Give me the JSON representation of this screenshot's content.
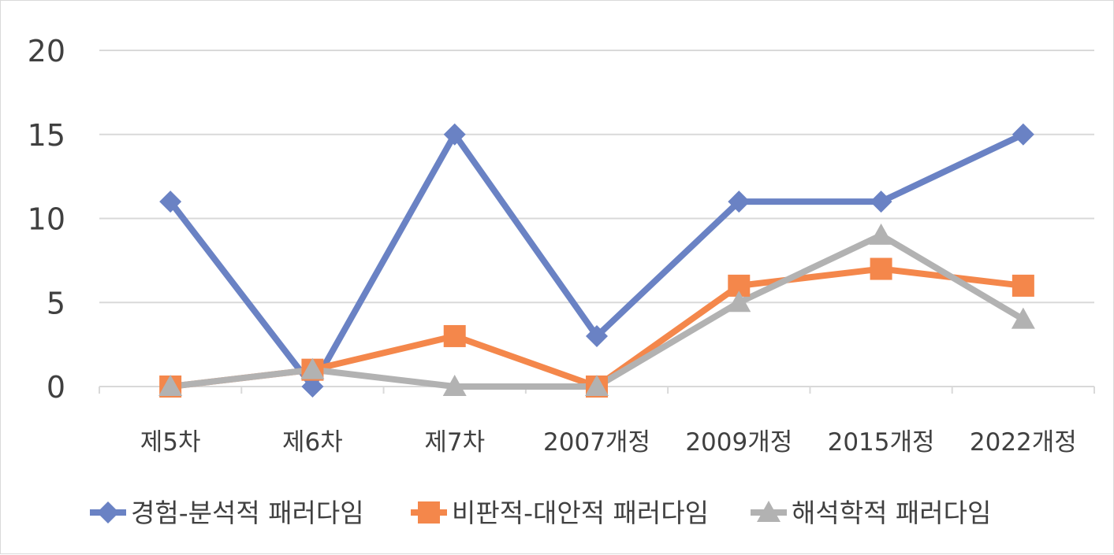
{
  "chart_data": {
    "type": "line",
    "title": "",
    "xlabel": "",
    "ylabel": "",
    "categories": [
      "제5차",
      "제6차",
      "제7차",
      "2007개정",
      "2009개정",
      "2015개정",
      "2022개정"
    ],
    "ylim": [
      0,
      20
    ],
    "yticks": [
      "0",
      "5",
      "10",
      "15",
      "20"
    ],
    "grid": true,
    "legend_position": "bottom",
    "series": [
      {
        "name": "경험-분석적 패러다임",
        "color": "#6a82c4",
        "marker": "diamond",
        "values": [
          11,
          0,
          15,
          3,
          11,
          11,
          15
        ]
      },
      {
        "name": "비판적-대안적 패러다임",
        "color": "#f4874b",
        "marker": "square",
        "values": [
          0,
          1,
          3,
          0,
          6,
          7,
          6
        ]
      },
      {
        "name": "해석학적 패러다임",
        "color": "#b2b2b2",
        "marker": "triangle",
        "values": [
          0,
          1,
          0,
          0,
          5,
          9,
          4
        ]
      }
    ]
  }
}
